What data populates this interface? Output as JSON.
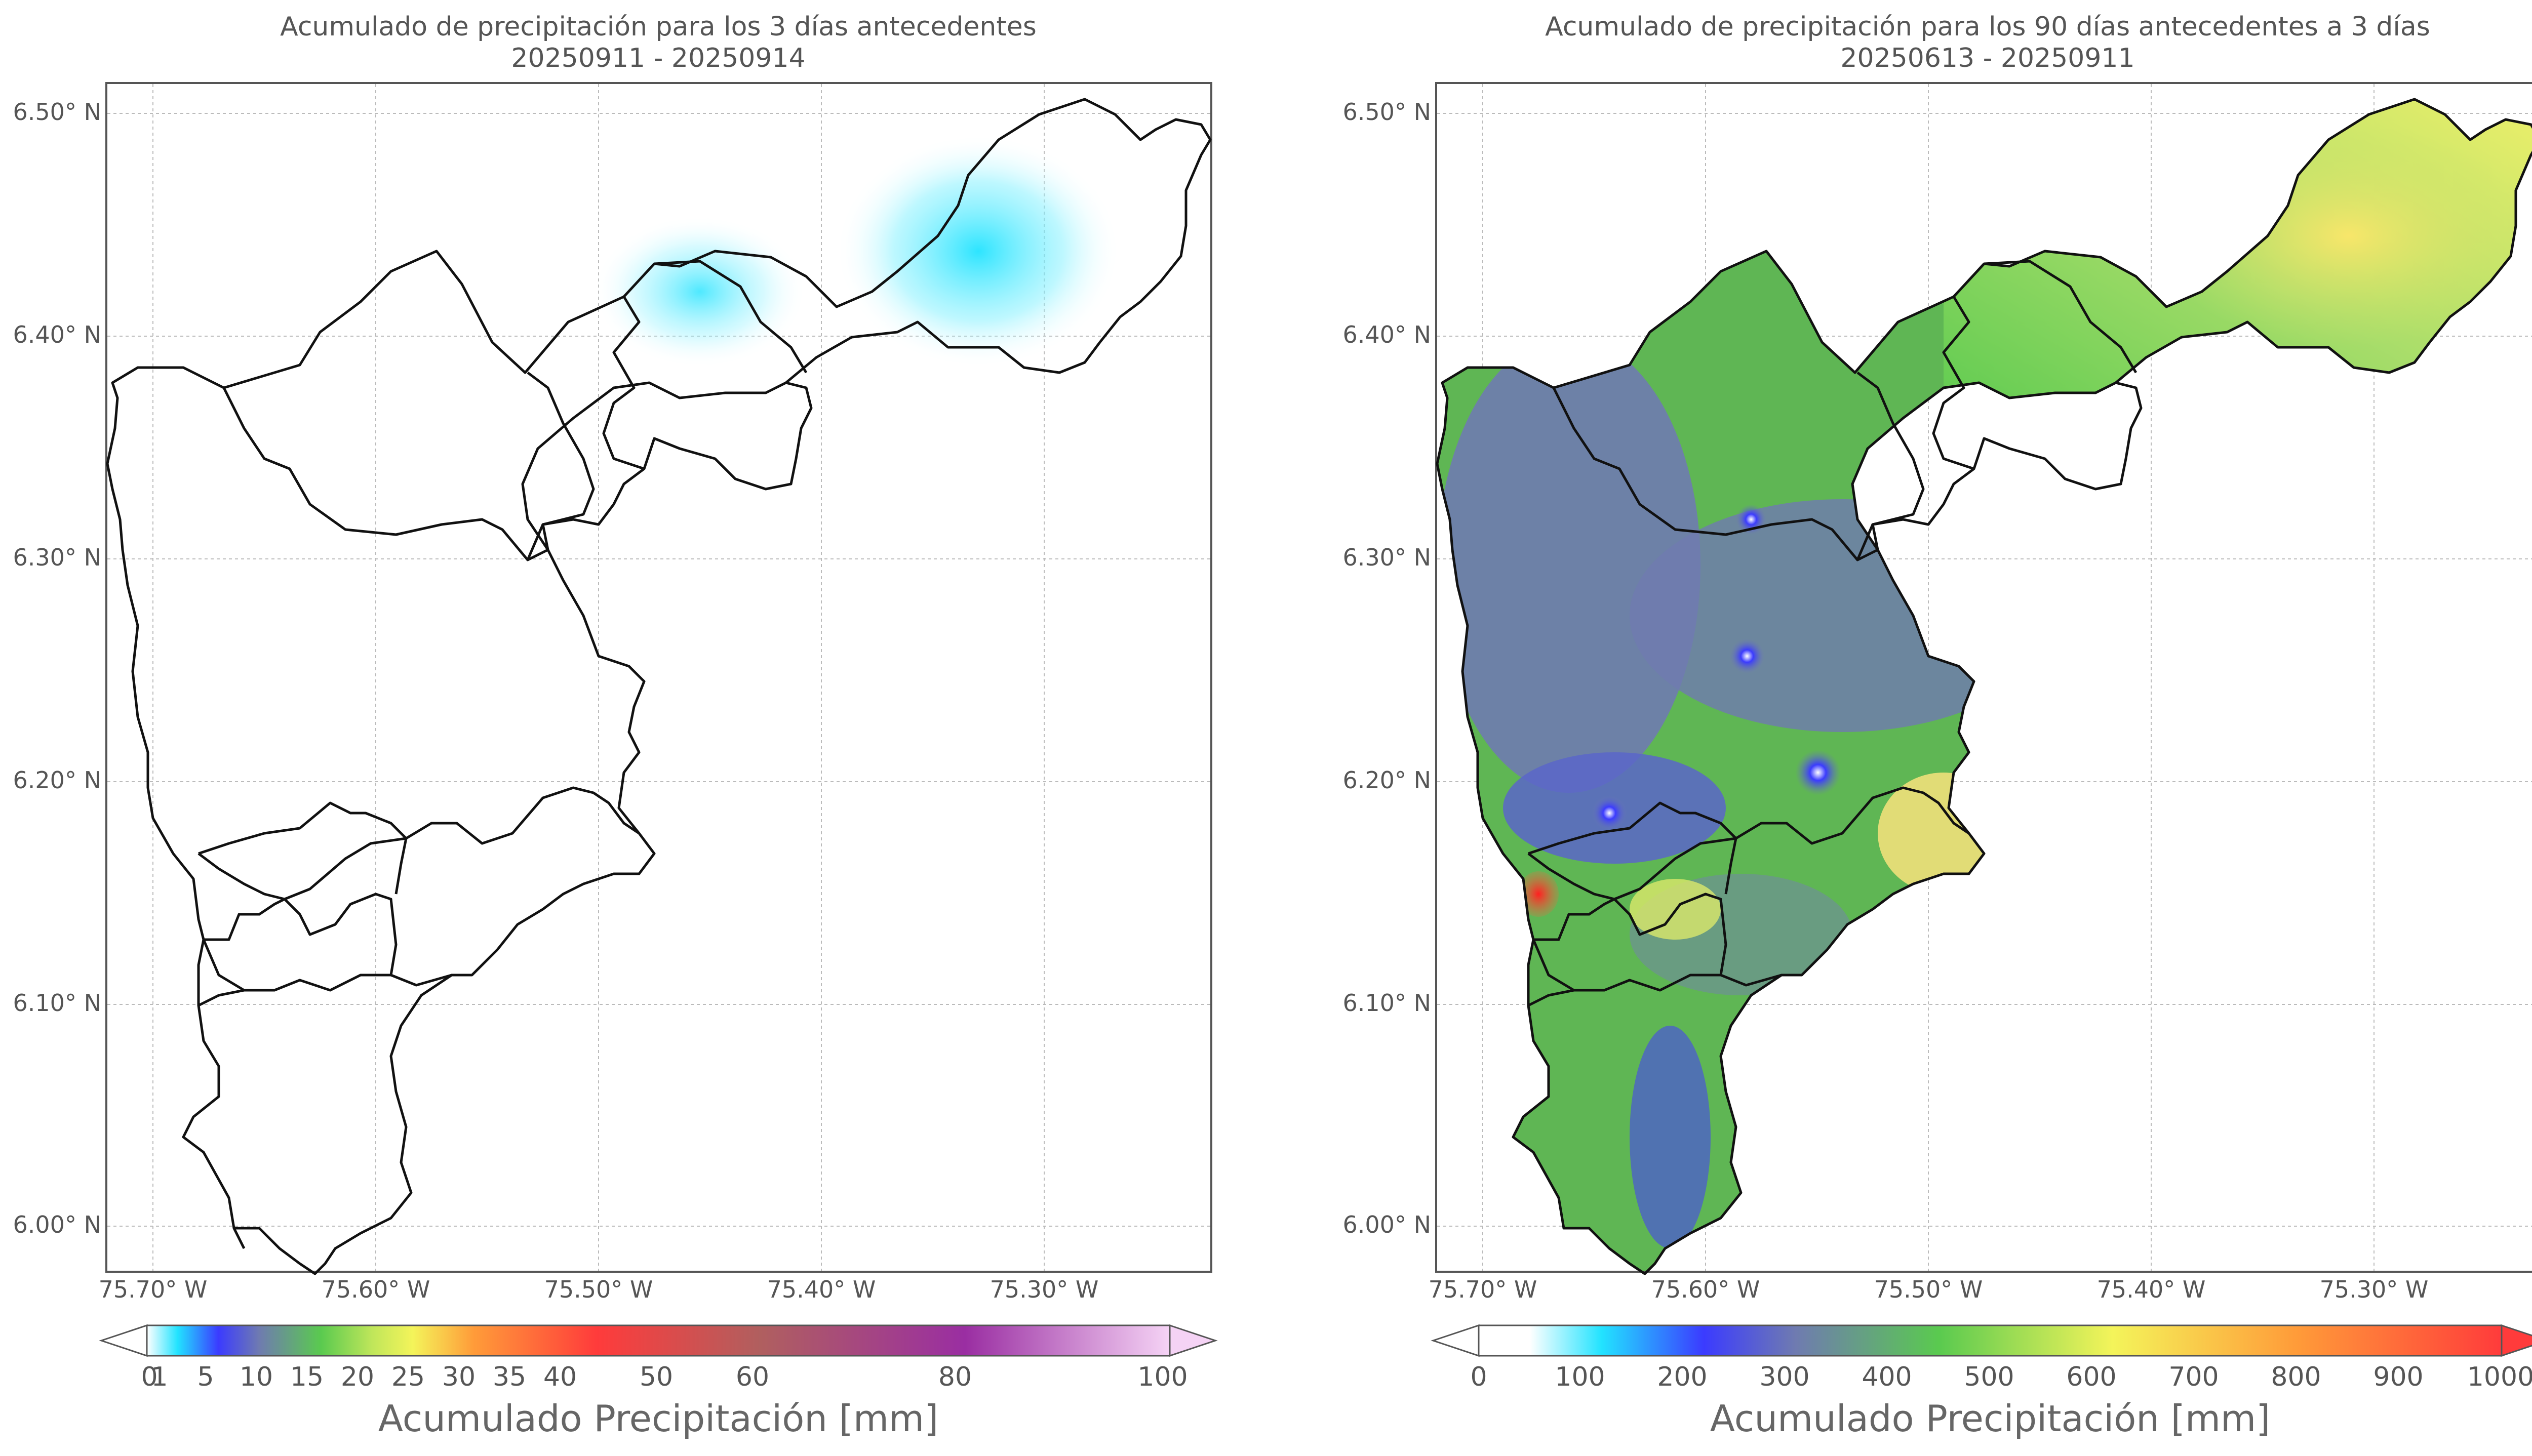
{
  "panels": [
    {
      "title_line1": "Acumulado de precipitación para los 3 días antecedentes",
      "title_line2": "20250911 - 20250914",
      "lat_ticks": [
        "6.50° N",
        "6.40° N",
        "6.30° N",
        "6.20° N",
        "6.10° N",
        "6.00° N"
      ],
      "lon_ticks": [
        "75.70° W",
        "75.60° W",
        "75.50° W",
        "75.40° W",
        "75.30° W"
      ],
      "colorbar_label": "Acumulado Precipitación [mm]",
      "colorbar_ticks": [
        "0",
        "1",
        "5",
        "10",
        "15",
        "20",
        "25",
        "30",
        "35",
        "40",
        "50",
        "60",
        "80",
        "100"
      ]
    },
    {
      "title_line1": "Acumulado de precipitación para los 90 días antecedentes a 3 días",
      "title_line2": "20250613 - 20250911",
      "lat_ticks": [
        "6.50° N",
        "6.40° N",
        "6.30° N",
        "6.20° N",
        "6.10° N",
        "6.00° N"
      ],
      "lon_ticks": [
        "75.70° W",
        "75.60° W",
        "75.50° W",
        "75.40° W",
        "75.30° W"
      ],
      "colorbar_label": "Acumulado Precipitación [mm]",
      "colorbar_ticks": [
        "0",
        "100",
        "200",
        "300",
        "400",
        "500",
        "600",
        "700",
        "800",
        "900",
        "1000"
      ]
    }
  ],
  "colors": {
    "scale1": [
      "#ffffff",
      "#22e3ff",
      "#3b3bff",
      "#6f7bb0",
      "#5aca4f",
      "#f4f45a",
      "#ff9b39",
      "#ff3b3b",
      "#b05f5f",
      "#9a2ea2",
      "#f5d3f5"
    ],
    "scale2": [
      "#ffffff",
      "#22e3ff",
      "#3b3bff",
      "#6f7bb0",
      "#5aca4f",
      "#f4f45a",
      "#ff9b39",
      "#ff3b3b"
    ]
  }
}
